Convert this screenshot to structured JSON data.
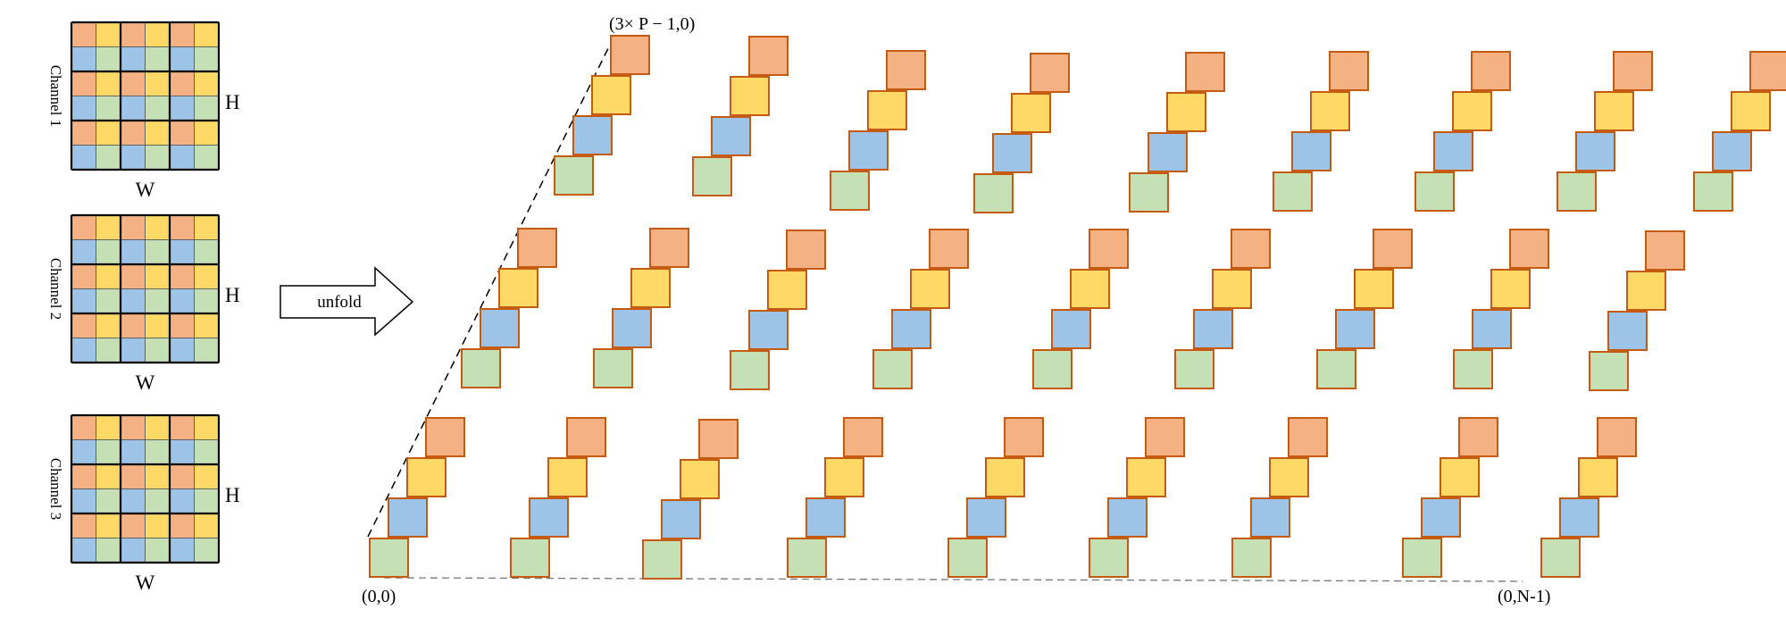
{
  "channels": [
    {
      "label": "Channel 1",
      "height_label": "H",
      "width_label": "W"
    },
    {
      "label": "Channel 2",
      "height_label": "H",
      "width_label": "W"
    },
    {
      "label": "Channel 3",
      "height_label": "H",
      "width_label": "W"
    }
  ],
  "arrow": {
    "label": "unfold"
  },
  "coords": {
    "top": "(3× P − 1,0)",
    "origin": "(0,0)",
    "end": "(0,N-1)"
  },
  "colors": {
    "orange": "#F4B183",
    "yellow": "#FFD966",
    "blue": "#9DC3E6",
    "green": "#C5E0B4",
    "stroke": "#C55A11"
  }
}
